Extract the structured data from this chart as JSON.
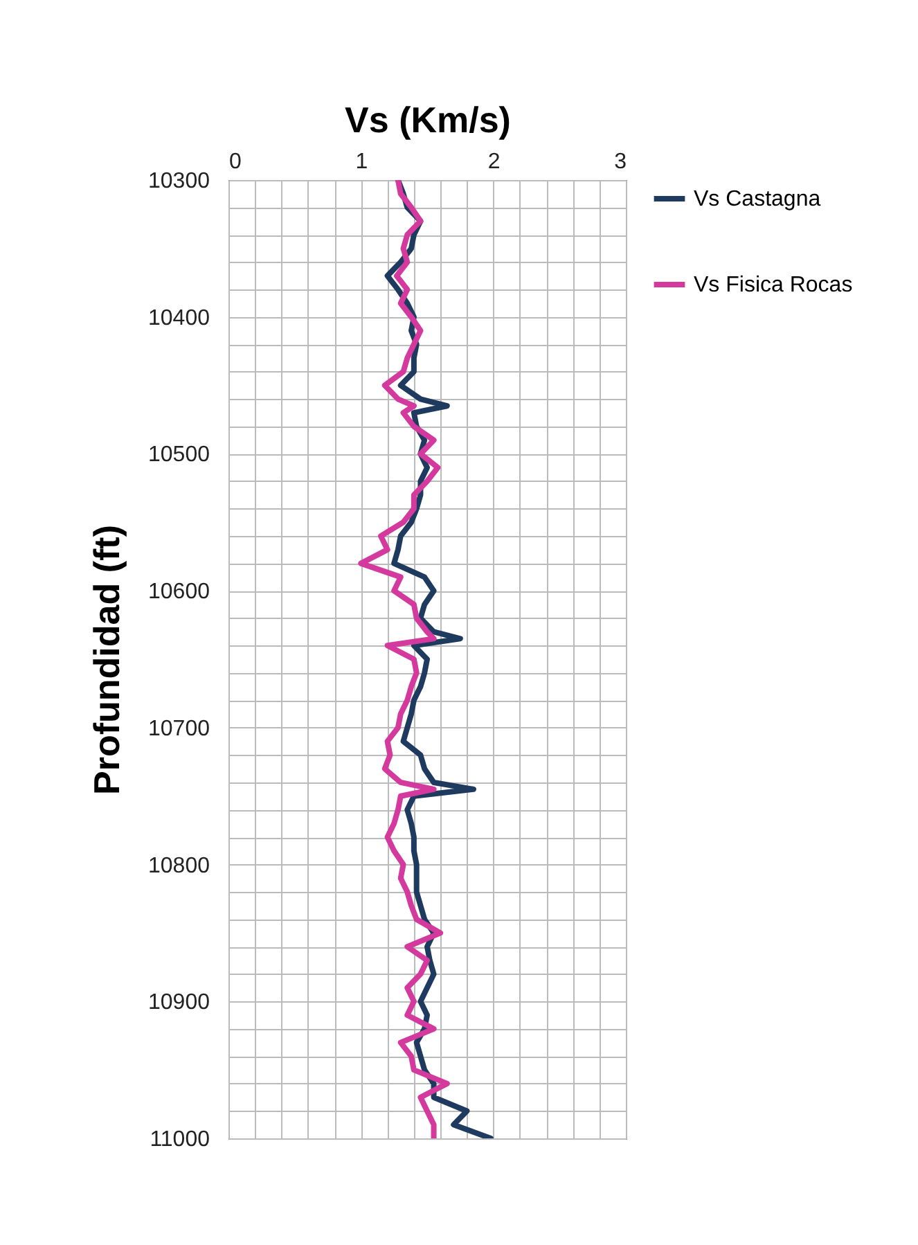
{
  "chart_data": {
    "type": "line",
    "xlabel": "Vs (Km/s)",
    "ylabel": "Profundidad (ft)",
    "xlim": [
      0,
      3
    ],
    "ylim": [
      11000,
      10300
    ],
    "xticks": [
      0,
      {
        "value": 0.2,
        "label": null
      },
      {
        "value": 0.4,
        "label": null
      },
      {
        "value": 0.6,
        "label": null
      },
      {
        "value": 0.8,
        "label": null
      },
      1,
      {
        "value": 1.2,
        "label": null
      },
      {
        "value": 1.4,
        "label": null
      },
      {
        "value": 1.6,
        "label": null
      },
      {
        "value": 1.8,
        "label": null
      },
      2,
      {
        "value": 2.2,
        "label": null
      },
      {
        "value": 2.4,
        "label": null
      },
      {
        "value": 2.6,
        "label": null
      },
      {
        "value": 2.8,
        "label": null
      },
      3
    ],
    "yticks": [
      10300,
      {
        "value": 10320,
        "label": null
      },
      {
        "value": 10340,
        "label": null
      },
      {
        "value": 10360,
        "label": null
      },
      {
        "value": 10380,
        "label": null
      },
      10400,
      {
        "value": 10420,
        "label": null
      },
      {
        "value": 10440,
        "label": null
      },
      {
        "value": 10460,
        "label": null
      },
      {
        "value": 10480,
        "label": null
      },
      10500,
      {
        "value": 10520,
        "label": null
      },
      {
        "value": 10540,
        "label": null
      },
      {
        "value": 10560,
        "label": null
      },
      {
        "value": 10580,
        "label": null
      },
      10600,
      {
        "value": 10620,
        "label": null
      },
      {
        "value": 10640,
        "label": null
      },
      {
        "value": 10660,
        "label": null
      },
      {
        "value": 10680,
        "label": null
      },
      10700,
      {
        "value": 10720,
        "label": null
      },
      {
        "value": 10740,
        "label": null
      },
      {
        "value": 10760,
        "label": null
      },
      {
        "value": 10780,
        "label": null
      },
      10800,
      {
        "value": 10820,
        "label": null
      },
      {
        "value": 10840,
        "label": null
      },
      {
        "value": 10860,
        "label": null
      },
      {
        "value": 10880,
        "label": null
      },
      10900,
      {
        "value": 10920,
        "label": null
      },
      {
        "value": 10940,
        "label": null
      },
      {
        "value": 10960,
        "label": null
      },
      {
        "value": 10980,
        "label": null
      },
      11000
    ],
    "grid": true,
    "legend": "right",
    "marker": "none",
    "line_style": "solid",
    "series": [
      {
        "name": "Vs Castagna",
        "color": "#1f3a5f",
        "x": [
          1.28,
          1.32,
          1.35,
          1.45,
          1.4,
          1.38,
          1.3,
          1.2,
          1.28,
          1.35,
          1.4,
          1.38,
          1.42,
          1.4,
          1.4,
          1.3,
          1.45,
          1.65,
          1.4,
          1.42,
          1.48,
          1.45,
          1.5,
          1.45,
          1.45,
          1.42,
          1.38,
          1.3,
          1.28,
          1.25,
          1.48,
          1.55,
          1.48,
          1.45,
          1.55,
          1.75,
          1.4,
          1.5,
          1.48,
          1.45,
          1.4,
          1.38,
          1.35,
          1.32,
          1.45,
          1.48,
          1.55,
          1.85,
          1.4,
          1.35,
          1.38,
          1.4,
          1.4,
          1.42,
          1.42,
          1.42,
          1.45,
          1.48,
          1.55,
          1.5,
          1.52,
          1.55,
          1.5,
          1.45,
          1.5,
          1.48,
          1.42,
          1.45,
          1.48,
          1.55,
          1.55,
          1.8,
          1.7,
          1.98
        ],
        "values": [
          10300,
          10310,
          10320,
          10330,
          10340,
          10350,
          10360,
          10370,
          10380,
          10390,
          10400,
          10410,
          10420,
          10430,
          10440,
          10450,
          10460,
          10465,
          10470,
          10480,
          10490,
          10500,
          10510,
          10520,
          10530,
          10540,
          10550,
          10560,
          10570,
          10580,
          10590,
          10600,
          10610,
          10620,
          10630,
          10635,
          10640,
          10650,
          10660,
          10670,
          10680,
          10690,
          10700,
          10710,
          10720,
          10730,
          10740,
          10745,
          10750,
          10760,
          10770,
          10780,
          10790,
          10800,
          10810,
          10820,
          10830,
          10840,
          10850,
          10860,
          10870,
          10880,
          10890,
          10900,
          10910,
          10920,
          10930,
          10940,
          10950,
          10960,
          10970,
          10980,
          10990,
          11000
        ]
      },
      {
        "name": "Vs Fisica Rocas",
        "color": "#d4399e",
        "x": [
          1.28,
          1.3,
          1.38,
          1.45,
          1.35,
          1.32,
          1.35,
          1.27,
          1.35,
          1.3,
          1.38,
          1.45,
          1.4,
          1.35,
          1.32,
          1.18,
          1.28,
          1.4,
          1.32,
          1.4,
          1.55,
          1.45,
          1.58,
          1.5,
          1.4,
          1.4,
          1.32,
          1.15,
          1.2,
          1.0,
          1.3,
          1.25,
          1.4,
          1.42,
          1.5,
          1.55,
          1.2,
          1.4,
          1.42,
          1.38,
          1.35,
          1.3,
          1.28,
          1.2,
          1.22,
          1.18,
          1.3,
          1.55,
          1.3,
          1.28,
          1.25,
          1.2,
          1.25,
          1.32,
          1.3,
          1.35,
          1.38,
          1.42,
          1.6,
          1.35,
          1.5,
          1.45,
          1.35,
          1.4,
          1.35,
          1.55,
          1.3,
          1.38,
          1.4,
          1.65,
          1.45,
          1.5,
          1.55,
          1.55
        ],
        "values": [
          10300,
          10310,
          10320,
          10330,
          10340,
          10350,
          10360,
          10370,
          10380,
          10390,
          10400,
          10410,
          10420,
          10430,
          10440,
          10450,
          10460,
          10465,
          10470,
          10480,
          10490,
          10500,
          10510,
          10520,
          10530,
          10540,
          10550,
          10560,
          10570,
          10580,
          10590,
          10600,
          10610,
          10620,
          10630,
          10635,
          10640,
          10650,
          10660,
          10670,
          10680,
          10690,
          10700,
          10710,
          10720,
          10730,
          10740,
          10745,
          10750,
          10760,
          10770,
          10780,
          10790,
          10800,
          10810,
          10820,
          10830,
          10840,
          10850,
          10860,
          10870,
          10880,
          10890,
          10900,
          10910,
          10920,
          10930,
          10940,
          10950,
          10960,
          10970,
          10980,
          10990,
          11000
        ]
      }
    ]
  }
}
